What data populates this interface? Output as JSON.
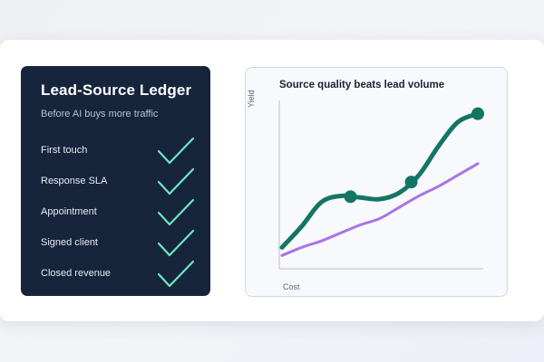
{
  "ledger": {
    "title": "Lead-Source Ledger",
    "subtitle": "Before AI buys more traffic",
    "items": [
      {
        "label": "First touch",
        "icon": "check-icon",
        "checked": true
      },
      {
        "label": "Response SLA",
        "icon": "check-icon",
        "checked": true
      },
      {
        "label": "Appointment",
        "icon": "check-icon",
        "checked": true
      },
      {
        "label": "Signed client",
        "icon": "check-icon",
        "checked": true
      },
      {
        "label": "Closed revenue",
        "icon": "check-icon",
        "checked": true
      }
    ]
  },
  "colors": {
    "ledger_bg": "#16243c",
    "check": "#6ee6c0",
    "quality_line": "#157565",
    "volume_line": "#a875e6"
  },
  "chart_data": {
    "type": "line",
    "title": "Source quality beats lead volume",
    "xlabel": "Cost",
    "ylabel": "Yield",
    "xlim": [
      0,
      10
    ],
    "ylim": [
      0,
      10
    ],
    "grid": false,
    "legend": "none",
    "series": [
      {
        "x": [
          0,
          1,
          2,
          3,
          4,
          5,
          6,
          7,
          8,
          9,
          10
        ],
        "values": [
          1.1,
          2.4,
          3.9,
          4.3,
          4.2,
          4.1,
          4.5,
          5.6,
          7.4,
          8.9,
          9.4
        ],
        "markers_at_x": [
          3.5,
          6.6,
          10
        ]
      },
      {
        "x": [
          0,
          1,
          2,
          3,
          4,
          5,
          6,
          7,
          8,
          9,
          10
        ],
        "values": [
          0.6,
          1.1,
          1.5,
          2.0,
          2.5,
          2.9,
          3.6,
          4.3,
          4.9,
          5.6,
          6.3
        ]
      }
    ]
  }
}
